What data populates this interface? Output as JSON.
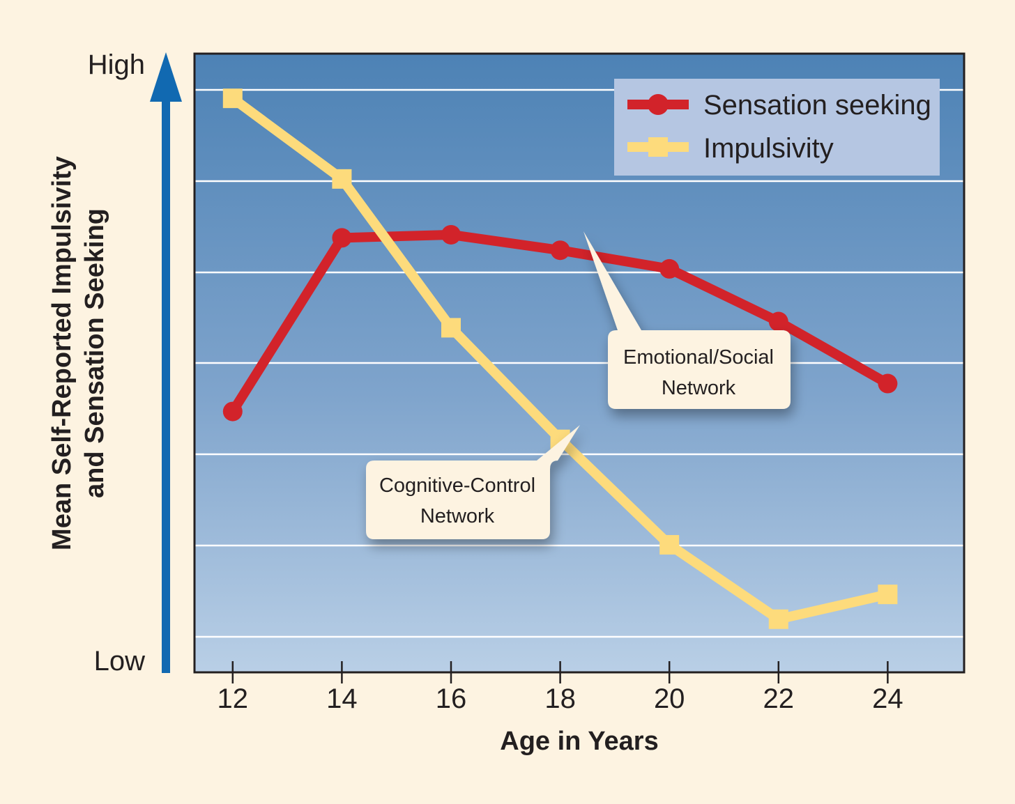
{
  "chart_data": {
    "type": "line",
    "title": "",
    "xlabel": "Age in Years",
    "ylabel": [
      "Mean Self-Reported Impulsivity",
      "and Sensation Seeking"
    ],
    "y_axis_high": "High",
    "y_axis_low": "Low",
    "x": [
      12,
      14,
      16,
      18,
      20,
      22,
      24
    ],
    "xlim": [
      11.3,
      25.4
    ],
    "ylim": [
      0,
      100
    ],
    "grid": true,
    "legend_position": "top-right",
    "series": [
      {
        "name": "Sensation seeking",
        "color": "#d2232a",
        "marker": "circle",
        "values": [
          46,
          74,
          74.5,
          72,
          69,
          60.5,
          50.5
        ]
      },
      {
        "name": "Impulsivity",
        "color": "#fddb7c",
        "marker": "square",
        "values": [
          96.5,
          83.5,
          59.5,
          41.5,
          24.5,
          12.5,
          16.5
        ]
      }
    ],
    "annotations": [
      {
        "lines": [
          "Emotional/Social",
          "Network"
        ],
        "points_to": "Sensation seeking at 18"
      },
      {
        "lines": [
          "Cognitive-Control",
          "Network"
        ],
        "points_to": "Impulsivity at 18"
      }
    ]
  }
}
